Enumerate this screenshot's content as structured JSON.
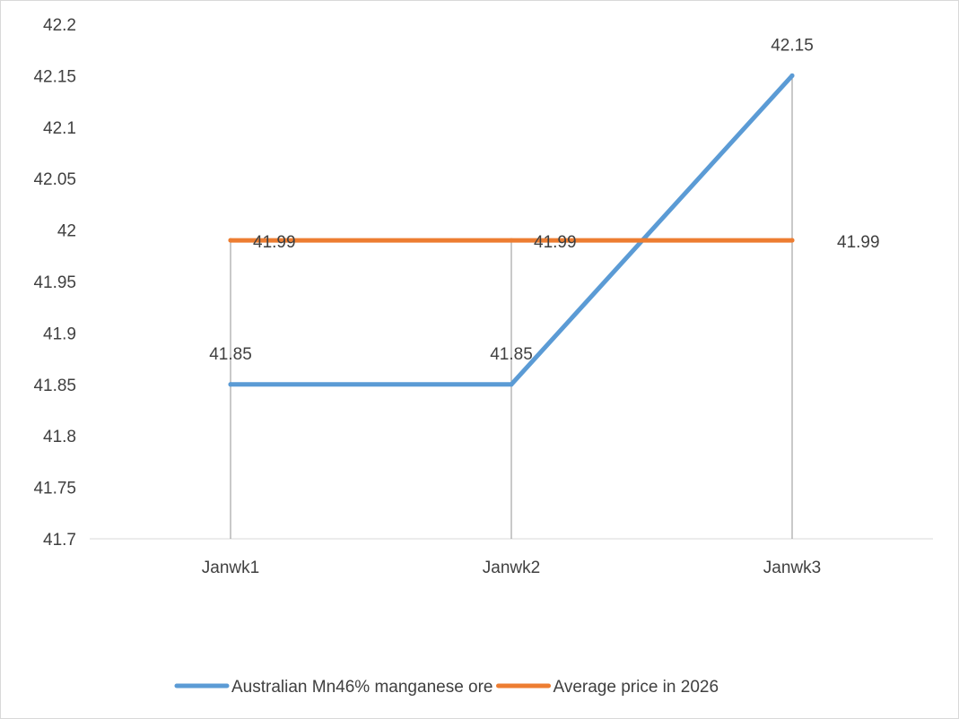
{
  "chart_data": {
    "type": "line",
    "categories": [
      "Janwk1",
      "Janwk2",
      "Janwk3"
    ],
    "series": [
      {
        "name": "Australian Mn46% manganese ore",
        "values": [
          41.85,
          41.85,
          42.15
        ],
        "color": "#5b9bd5"
      },
      {
        "name": "Average price in 2026",
        "values": [
          41.99,
          41.99,
          41.99
        ],
        "color": "#ed7d31"
      }
    ],
    "ylim": [
      41.7,
      42.2
    ],
    "yticks": [
      "41.7",
      "41.75",
      "41.8",
      "41.85",
      "41.9",
      "41.95",
      "42",
      "42.05",
      "42.1",
      "42.15",
      "42.2"
    ],
    "data_labels": true,
    "drop_lines": true,
    "grid": false,
    "legend": "bottom",
    "title": "",
    "xlabel": "",
    "ylabel": ""
  }
}
